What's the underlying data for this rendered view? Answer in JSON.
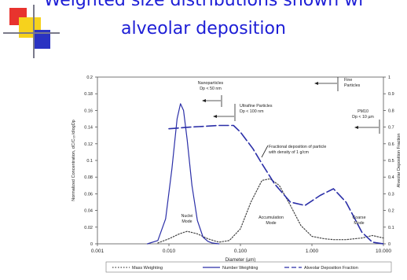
{
  "slide": {
    "title_line1": "Weighted size distributions shown wi",
    "title_line2": "alveolar deposition",
    "title_color": "#1d1ed6"
  },
  "chart_data": {
    "type": "line",
    "xscale": "log",
    "xlim": [
      0.001,
      10
    ],
    "ylim_left": [
      0,
      0.2
    ],
    "ylim_right": [
      0,
      1
    ],
    "xlabel": "Diameter (µm)",
    "ylabel_left": "Normalized Concentration, dC/Cₜₒₜ/dlogDp",
    "ylabel_right": "Alveolar Deposition Fraction",
    "x_ticks": [
      {
        "v": 0.001,
        "label": "0.001"
      },
      {
        "v": 0.01,
        "label": "0.010"
      },
      {
        "v": 0.1,
        "label": "0.100"
      },
      {
        "v": 1,
        "label": "1.000"
      },
      {
        "v": 10,
        "label": "10.000"
      }
    ],
    "y_ticks_left": [
      {
        "v": 0,
        "label": "0"
      },
      {
        "v": 0.02,
        "label": "0.02"
      },
      {
        "v": 0.04,
        "label": "0.04"
      },
      {
        "v": 0.06,
        "label": "0.06"
      },
      {
        "v": 0.08,
        "label": "0.08"
      },
      {
        "v": 0.1,
        "label": "0.1"
      },
      {
        "v": 0.12,
        "label": "0.12"
      },
      {
        "v": 0.14,
        "label": "0.14"
      },
      {
        "v": 0.16,
        "label": "0.16"
      },
      {
        "v": 0.18,
        "label": "0.18"
      },
      {
        "v": 0.2,
        "label": "0.2"
      }
    ],
    "y_ticks_right": [
      {
        "v": 0,
        "label": "0"
      },
      {
        "v": 0.1,
        "label": "0.1"
      },
      {
        "v": 0.2,
        "label": "0.2"
      },
      {
        "v": 0.3,
        "label": "0.3"
      },
      {
        "v": 0.4,
        "label": "0.4"
      },
      {
        "v": 0.5,
        "label": "0.5"
      },
      {
        "v": 0.6,
        "label": "0.6"
      },
      {
        "v": 0.7,
        "label": "0.7"
      },
      {
        "v": 0.8,
        "label": "0.8"
      },
      {
        "v": 0.9,
        "label": "0.9"
      },
      {
        "v": 1,
        "label": "1"
      }
    ],
    "series": [
      {
        "name": "Mass Weighting",
        "axis": "left",
        "color": "#444444",
        "style": "dotted",
        "x": [
          0.007,
          0.01,
          0.014,
          0.018,
          0.025,
          0.035,
          0.05,
          0.07,
          0.1,
          0.14,
          0.2,
          0.26,
          0.35,
          0.5,
          0.7,
          1,
          1.5,
          2,
          3,
          5,
          7,
          10
        ],
        "y": [
          0.001,
          0.006,
          0.012,
          0.015,
          0.012,
          0.006,
          0.002,
          0.004,
          0.018,
          0.05,
          0.076,
          0.078,
          0.07,
          0.046,
          0.022,
          0.009,
          0.006,
          0.005,
          0.005,
          0.007,
          0.01,
          0.007
        ]
      },
      {
        "name": "Number Weighting",
        "axis": "left",
        "color": "#2b2fa8",
        "style": "solid",
        "x": [
          0.005,
          0.007,
          0.009,
          0.011,
          0.013,
          0.0145,
          0.016,
          0.018,
          0.021,
          0.025,
          0.03,
          0.035,
          0.04,
          0.05
        ],
        "y": [
          0,
          0.004,
          0.03,
          0.09,
          0.15,
          0.168,
          0.16,
          0.125,
          0.07,
          0.028,
          0.008,
          0.003,
          0.001,
          0
        ]
      },
      {
        "name": "Alveolar Deposition Fraction",
        "axis": "right",
        "color": "#2b2fa8",
        "style": "dashed",
        "x": [
          0.01,
          0.02,
          0.05,
          0.08,
          0.1,
          0.15,
          0.2,
          0.3,
          0.5,
          0.8,
          1.3,
          2,
          3,
          5,
          7,
          10
        ],
        "y": [
          0.69,
          0.7,
          0.71,
          0.71,
          0.67,
          0.57,
          0.48,
          0.36,
          0.25,
          0.23,
          0.29,
          0.33,
          0.25,
          0.07,
          0.01,
          0
        ]
      }
    ],
    "annotations": [
      {
        "id": "nano",
        "lines": [
          "Nanoparticles",
          "Dp < 50 nm"
        ]
      },
      {
        "id": "ultra",
        "lines": [
          "Ultrafine Particles",
          "Dp < 100 nm"
        ]
      },
      {
        "id": "fine",
        "lines": [
          "Fine",
          "Particles"
        ]
      },
      {
        "id": "pm10",
        "lines": [
          "PM10",
          "Dp < 10 µm"
        ]
      },
      {
        "id": "dep",
        "lines": [
          "Fractional deposition of particle",
          "with density of 1 g/cm"
        ]
      },
      {
        "id": "nuclei",
        "lines": [
          "Nuclei",
          "Mode"
        ]
      },
      {
        "id": "accum",
        "lines": [
          "Accumulation",
          "Mode"
        ]
      },
      {
        "id": "coarse",
        "lines": [
          "Coarse",
          "Mode"
        ]
      }
    ],
    "legend": {
      "position": "bottom",
      "entries": [
        "Mass Weighting",
        "Number Weighting",
        "Alveolar Deposition Fraction"
      ]
    }
  }
}
